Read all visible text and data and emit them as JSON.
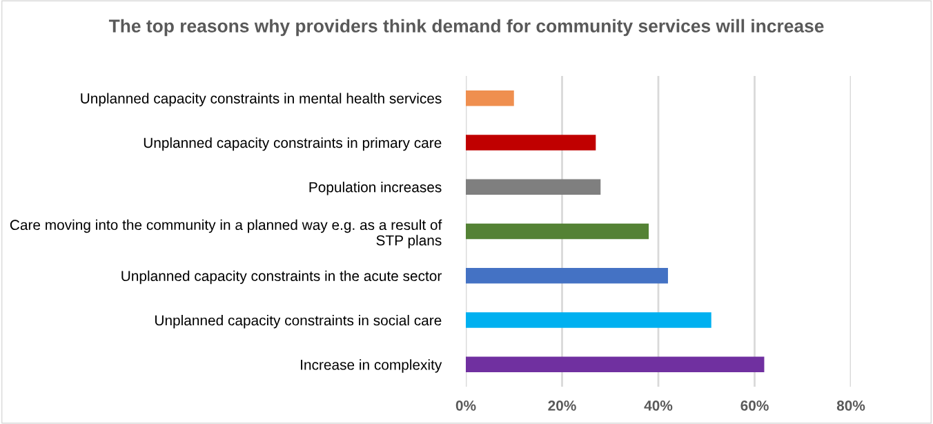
{
  "chart_data": {
    "type": "bar",
    "orientation": "horizontal",
    "title": "The top reasons why providers think demand for community services will increase",
    "categories": [
      "Unplanned capacity constraints in mental health services",
      "Unplanned capacity constraints in primary care",
      "Population increases",
      "Care moving into the community in a planned way e.g. as a result of STP plans",
      "Unplanned capacity constraints in the acute sector",
      "Unplanned capacity constraints in social care",
      "Increase in complexity"
    ],
    "values": [
      10,
      27,
      28,
      38,
      42,
      51,
      62
    ],
    "colors": [
      "#ef8f4f",
      "#c00000",
      "#7f7f7f",
      "#548235",
      "#4472c4",
      "#00b0f0",
      "#7030a0"
    ],
    "xlim": [
      0,
      80
    ],
    "xticks": [
      {
        "value": 0,
        "label": "0%"
      },
      {
        "value": 20,
        "label": "20%"
      },
      {
        "value": 40,
        "label": "40%"
      },
      {
        "value": 60,
        "label": "60%"
      },
      {
        "value": 80,
        "label": "80%"
      }
    ],
    "grid": "x"
  }
}
